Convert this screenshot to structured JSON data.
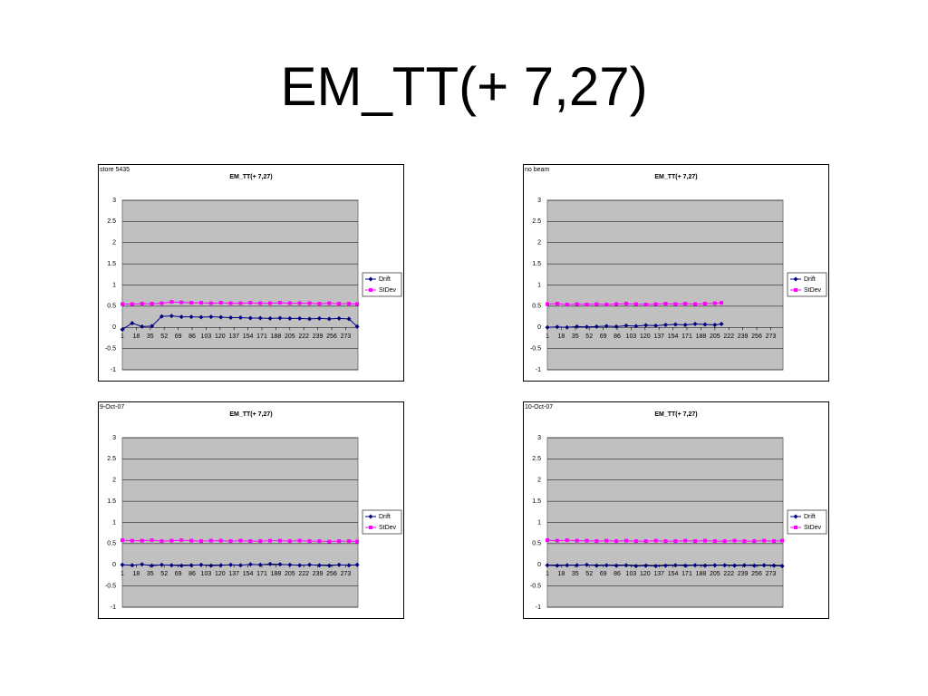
{
  "title": "EM_TT(+ 7,27)",
  "chart_data": [
    {
      "type": "line",
      "title": "EM_TT(+ 7,27)",
      "annotation": "store 5435",
      "legend": "right",
      "grid": true,
      "xlim": [
        1,
        288
      ],
      "xticks": [
        1,
        18,
        35,
        52,
        69,
        86,
        103,
        120,
        137,
        154,
        171,
        188,
        205,
        222,
        239,
        256,
        273
      ],
      "ylim": [
        -1,
        3
      ],
      "yticks": [
        -1,
        -0.5,
        0,
        0.5,
        1,
        1.5,
        2,
        2.5,
        3
      ],
      "x": [
        1,
        13,
        25,
        37,
        49,
        61,
        73,
        85,
        97,
        109,
        121,
        133,
        145,
        157,
        169,
        181,
        193,
        205,
        217,
        229,
        241,
        253,
        265,
        277,
        287
      ],
      "series": [
        {
          "name": "Drift",
          "color": "#000080",
          "values": [
            -0.05,
            0.1,
            0.02,
            0.03,
            0.26,
            0.27,
            0.25,
            0.25,
            0.24,
            0.25,
            0.24,
            0.23,
            0.23,
            0.22,
            0.22,
            0.21,
            0.22,
            0.21,
            0.21,
            0.2,
            0.21,
            0.2,
            0.21,
            0.2,
            0.02
          ]
        },
        {
          "name": "StDev",
          "color": "#ff00ff",
          "values": [
            0.55,
            0.55,
            0.56,
            0.56,
            0.57,
            0.6,
            0.59,
            0.58,
            0.58,
            0.57,
            0.58,
            0.57,
            0.57,
            0.58,
            0.57,
            0.57,
            0.58,
            0.57,
            0.57,
            0.57,
            0.56,
            0.57,
            0.56,
            0.56,
            0.55
          ]
        }
      ]
    },
    {
      "type": "line",
      "title": "EM_TT(+ 7,27)",
      "annotation": "no beam",
      "legend": "right",
      "grid": true,
      "xlim": [
        1,
        288
      ],
      "xticks": [
        1,
        18,
        35,
        52,
        69,
        86,
        103,
        120,
        137,
        154,
        171,
        188,
        205,
        222,
        239,
        256,
        273
      ],
      "ylim": [
        -1,
        3
      ],
      "yticks": [
        -1,
        -0.5,
        0,
        0.5,
        1,
        1.5,
        2,
        2.5,
        3
      ],
      "x": [
        1,
        13,
        25,
        37,
        49,
        61,
        73,
        85,
        97,
        109,
        121,
        133,
        145,
        157,
        169,
        181,
        193,
        205,
        213
      ],
      "series": [
        {
          "name": "Drift",
          "color": "#000080",
          "values": [
            0,
            0.01,
            0,
            0.02,
            0.01,
            0.02,
            0.03,
            0.02,
            0.04,
            0.03,
            0.05,
            0.04,
            0.06,
            0.07,
            0.06,
            0.08,
            0.07,
            0.06,
            0.08
          ]
        },
        {
          "name": "StDev",
          "color": "#ff00ff",
          "values": [
            0.55,
            0.56,
            0.54,
            0.55,
            0.54,
            0.55,
            0.54,
            0.55,
            0.56,
            0.55,
            0.54,
            0.55,
            0.56,
            0.55,
            0.56,
            0.55,
            0.56,
            0.57,
            0.58
          ]
        }
      ]
    },
    {
      "type": "line",
      "title": "EM_TT(+ 7,27)",
      "annotation": "9-Oct-07",
      "legend": "right",
      "grid": true,
      "xlim": [
        1,
        288
      ],
      "xticks": [
        1,
        18,
        35,
        52,
        69,
        86,
        103,
        120,
        137,
        154,
        171,
        188,
        205,
        222,
        239,
        256,
        273
      ],
      "ylim": [
        -1,
        3
      ],
      "yticks": [
        -1,
        -0.5,
        0,
        0.5,
        1,
        1.5,
        2,
        2.5,
        3
      ],
      "x": [
        1,
        13,
        25,
        37,
        49,
        61,
        73,
        85,
        97,
        109,
        121,
        133,
        145,
        157,
        169,
        181,
        193,
        205,
        217,
        229,
        241,
        253,
        265,
        277,
        287
      ],
      "series": [
        {
          "name": "Drift",
          "color": "#000080",
          "values": [
            0,
            -0.01,
            0.01,
            -0.02,
            0,
            -0.01,
            -0.02,
            -0.01,
            0,
            -0.02,
            -0.01,
            0,
            -0.01,
            0.01,
            0,
            0.02,
            0.01,
            0,
            -0.01,
            0,
            -0.01,
            -0.02,
            0,
            -0.01,
            0
          ]
        },
        {
          "name": "StDev",
          "color": "#ff00ff",
          "values": [
            0.58,
            0.57,
            0.57,
            0.58,
            0.56,
            0.57,
            0.58,
            0.57,
            0.56,
            0.57,
            0.57,
            0.56,
            0.57,
            0.56,
            0.56,
            0.57,
            0.57,
            0.56,
            0.57,
            0.56,
            0.56,
            0.55,
            0.56,
            0.56,
            0.55
          ]
        }
      ]
    },
    {
      "type": "line",
      "title": "EM_TT(+ 7,27)",
      "annotation": "10-Oct-07",
      "legend": "right",
      "grid": true,
      "xlim": [
        1,
        288
      ],
      "xticks": [
        1,
        18,
        35,
        52,
        69,
        86,
        103,
        120,
        137,
        154,
        171,
        188,
        205,
        222,
        239,
        256,
        273
      ],
      "ylim": [
        -1,
        3
      ],
      "yticks": [
        -1,
        -0.5,
        0,
        0.5,
        1,
        1.5,
        2,
        2.5,
        3
      ],
      "x": [
        1,
        13,
        25,
        37,
        49,
        61,
        73,
        85,
        97,
        109,
        121,
        133,
        145,
        157,
        169,
        181,
        193,
        205,
        217,
        229,
        241,
        253,
        265,
        277,
        287
      ],
      "series": [
        {
          "name": "Drift",
          "color": "#000080",
          "values": [
            -0.01,
            -0.02,
            -0.01,
            -0.01,
            0,
            -0.02,
            -0.01,
            -0.02,
            -0.01,
            -0.03,
            -0.02,
            -0.03,
            -0.02,
            -0.01,
            -0.02,
            -0.01,
            -0.02,
            -0.01,
            -0.01,
            -0.02,
            -0.01,
            -0.02,
            -0.01,
            -0.02,
            -0.03
          ]
        },
        {
          "name": "StDev",
          "color": "#ff00ff",
          "values": [
            0.58,
            0.57,
            0.58,
            0.57,
            0.57,
            0.56,
            0.57,
            0.56,
            0.57,
            0.56,
            0.56,
            0.57,
            0.56,
            0.56,
            0.57,
            0.56,
            0.57,
            0.56,
            0.56,
            0.57,
            0.56,
            0.56,
            0.57,
            0.56,
            0.57
          ]
        }
      ]
    }
  ]
}
